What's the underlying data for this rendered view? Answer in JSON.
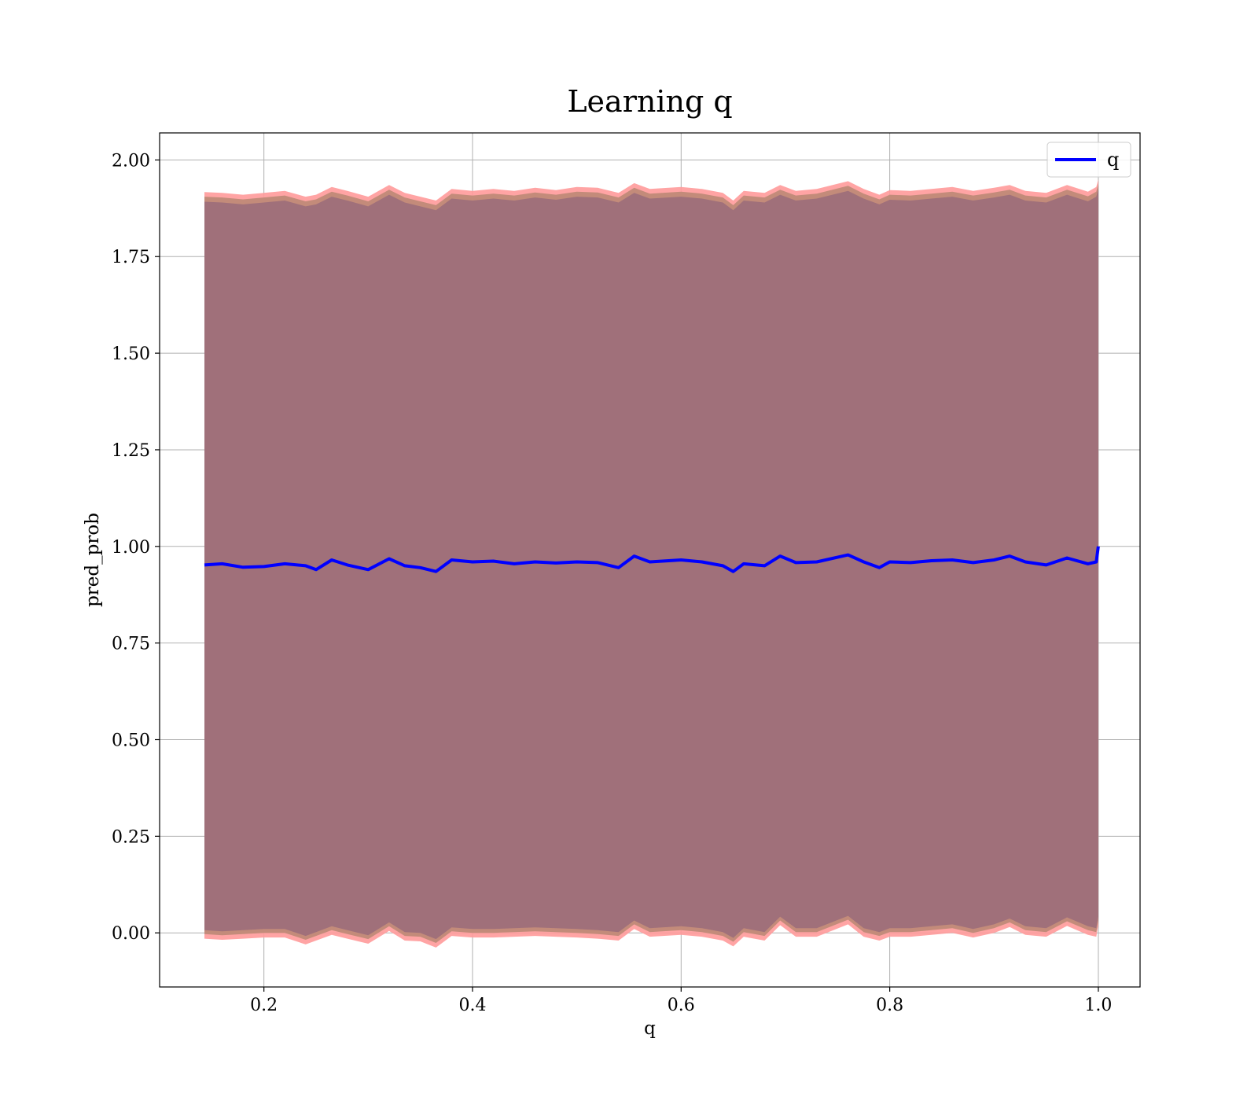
{
  "chart_data": {
    "type": "line",
    "title": "Learning q",
    "xlabel": "q",
    "ylabel": "pred_prob",
    "xlim": [
      0.1,
      1.04
    ],
    "ylim": [
      -0.14,
      2.07
    ],
    "xticks": [
      0.2,
      0.4,
      0.6,
      0.8,
      1.0
    ],
    "xtick_labels": [
      "0.2",
      "0.4",
      "0.6",
      "0.8",
      "1.0"
    ],
    "yticks": [
      0.0,
      0.25,
      0.5,
      0.75,
      1.0,
      1.25,
      1.5,
      1.75,
      2.0
    ],
    "ytick_labels": [
      "0.00",
      "0.25",
      "0.50",
      "0.75",
      "1.00",
      "1.25",
      "1.50",
      "1.75",
      "2.00"
    ],
    "grid": true,
    "legend": {
      "placement": "top-right",
      "entries": [
        "q"
      ]
    },
    "colors": {
      "line": "#0000ff",
      "band_inner": "#a0707a",
      "band_mid": "#c08a78",
      "band_outer": "#ff9a9a"
    },
    "series": [
      {
        "name": "q",
        "x": [
          0.143,
          0.16,
          0.18,
          0.2,
          0.22,
          0.24,
          0.25,
          0.265,
          0.28,
          0.3,
          0.32,
          0.335,
          0.35,
          0.365,
          0.38,
          0.4,
          0.42,
          0.44,
          0.46,
          0.48,
          0.5,
          0.52,
          0.54,
          0.555,
          0.57,
          0.6,
          0.62,
          0.64,
          0.65,
          0.66,
          0.68,
          0.695,
          0.71,
          0.73,
          0.76,
          0.775,
          0.79,
          0.8,
          0.82,
          0.84,
          0.86,
          0.88,
          0.9,
          0.915,
          0.93,
          0.95,
          0.97,
          0.99,
          0.998,
          1.0
        ],
        "y": [
          0.952,
          0.955,
          0.946,
          0.948,
          0.955,
          0.95,
          0.94,
          0.965,
          0.952,
          0.94,
          0.968,
          0.95,
          0.945,
          0.935,
          0.965,
          0.96,
          0.962,
          0.955,
          0.96,
          0.957,
          0.96,
          0.958,
          0.945,
          0.975,
          0.96,
          0.965,
          0.96,
          0.95,
          0.935,
          0.955,
          0.95,
          0.975,
          0.958,
          0.96,
          0.978,
          0.96,
          0.945,
          0.96,
          0.958,
          0.963,
          0.965,
          0.958,
          0.965,
          0.975,
          0.96,
          0.952,
          0.97,
          0.955,
          0.96,
          1.0
        ],
        "lower": [
          -0.015,
          -0.018,
          -0.015,
          -0.012,
          -0.012,
          -0.03,
          -0.02,
          -0.005,
          -0.015,
          -0.028,
          0.005,
          -0.02,
          -0.022,
          -0.038,
          -0.008,
          -0.012,
          -0.012,
          -0.01,
          -0.008,
          -0.01,
          -0.012,
          -0.015,
          -0.02,
          0.01,
          -0.01,
          -0.005,
          -0.01,
          -0.02,
          -0.035,
          -0.01,
          -0.02,
          0.02,
          -0.01,
          -0.01,
          0.022,
          -0.01,
          -0.02,
          -0.01,
          -0.01,
          -0.005,
          0.0,
          -0.012,
          0.0,
          0.015,
          -0.005,
          -0.01,
          0.018,
          -0.005,
          -0.01,
          0.02
        ],
        "upper": [
          1.917,
          1.915,
          1.91,
          1.915,
          1.92,
          1.905,
          1.91,
          1.93,
          1.92,
          1.905,
          1.935,
          1.915,
          1.905,
          1.895,
          1.925,
          1.92,
          1.925,
          1.92,
          1.928,
          1.922,
          1.93,
          1.928,
          1.915,
          1.94,
          1.925,
          1.93,
          1.925,
          1.915,
          1.895,
          1.92,
          1.915,
          1.935,
          1.92,
          1.925,
          1.945,
          1.925,
          1.91,
          1.922,
          1.92,
          1.925,
          1.93,
          1.92,
          1.928,
          1.935,
          1.92,
          1.915,
          1.935,
          1.918,
          1.93,
          1.95
        ]
      }
    ]
  }
}
